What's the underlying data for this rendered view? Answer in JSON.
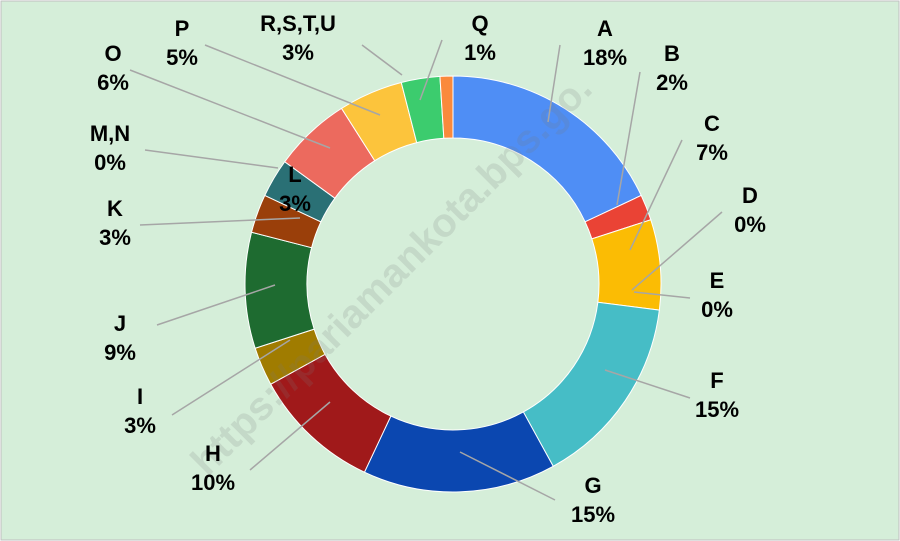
{
  "chart_data": {
    "type": "donut",
    "watermark": "https://pariamankota.bps.go.",
    "categories": [
      "A",
      "B",
      "C",
      "D",
      "E",
      "F",
      "G",
      "H",
      "I",
      "J",
      "K",
      "L",
      "M,N",
      "O",
      "P",
      "R,S,T,U",
      "Q"
    ],
    "values": [
      18,
      2,
      7,
      0,
      0,
      15,
      15,
      10,
      3,
      9,
      3,
      3,
      0,
      6,
      5,
      3,
      1
    ],
    "value_labels": [
      "18%",
      "2%",
      "7%",
      "0%",
      "0%",
      "15%",
      "15%",
      "10%",
      "3%",
      "9%",
      "3%",
      "3%",
      "0%",
      "6%",
      "5%",
      "3%",
      "1%"
    ],
    "colors": [
      "#4f8ef5",
      "#ea4335",
      "#fbbc04",
      "#e8a020",
      "#34a8b8",
      "#46bdc6",
      "#0b47b0",
      "#a0191a",
      "#a07c00",
      "#1e6b30",
      "#9a3f0a",
      "#2a7075",
      "#3a7fa0",
      "#ec6a5e",
      "#fcc43c",
      "#3ccc6e",
      "#fa8a3c"
    ]
  }
}
